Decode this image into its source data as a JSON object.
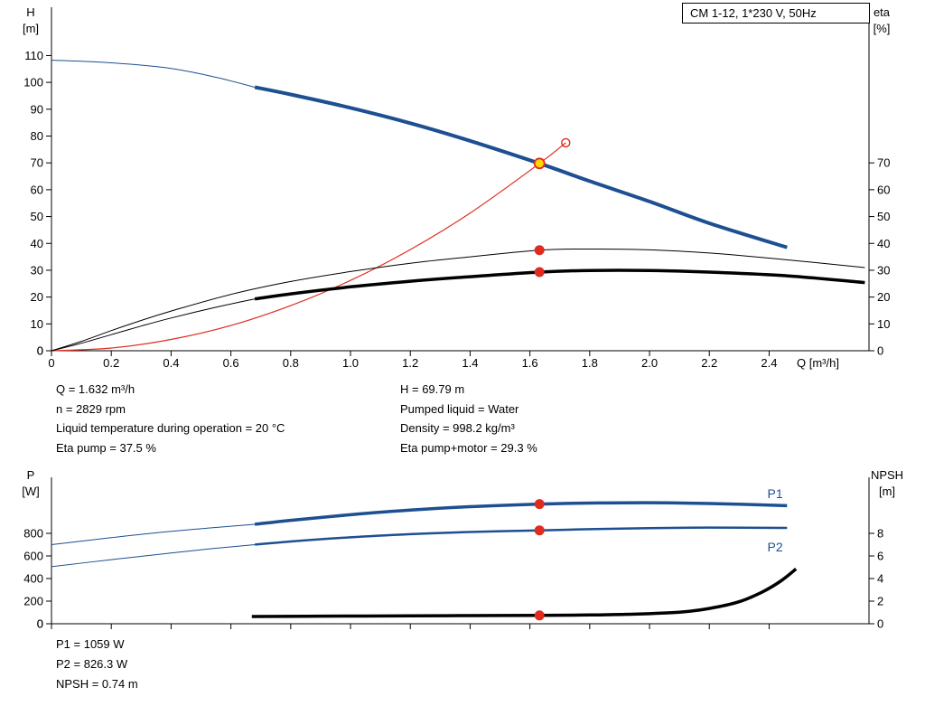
{
  "colors": {
    "blue": "#1d4f91",
    "red": "#e02b20",
    "black": "#000000",
    "yellow": "#ffd500"
  },
  "operating_point_info": {
    "left": [
      "Q = 1.632 m³/h",
      "n = 2829 rpm",
      "Liquid temperature during operation = 20 °C",
      "Eta pump = 37.5 %"
    ],
    "right": [
      "H = 69.79 m",
      "Pumped liquid = Water",
      "Density = 998.2 kg/m³",
      "Eta pump+motor = 29.3 %"
    ]
  },
  "power_info": [
    "P1 = 1059 W",
    "P2 = 826.3 W",
    "NPSH = 0.74 m"
  ],
  "chart_data": [
    {
      "type": "line",
      "title": "CM 1-12, 1*230 V, 50Hz",
      "x_axis": {
        "label": "Q [m³/h]",
        "range": [
          0,
          2.734
        ],
        "ticks": [
          0,
          0.2,
          0.4,
          0.6,
          0.8,
          1,
          1.2,
          1.4,
          1.6,
          1.8,
          2,
          2.2,
          2.4
        ],
        "tick_labels": [
          "0",
          "0.2",
          "0.4",
          "0.6",
          "0.8",
          "1.0",
          "1.2",
          "1.4",
          "1.6",
          "1.8",
          "2.0",
          "2.2",
          "2.4"
        ]
      },
      "left_axis": {
        "label_lines": [
          "H",
          "[m]"
        ],
        "range": [
          0,
          128
        ],
        "ticks": [
          0,
          10,
          20,
          30,
          40,
          50,
          60,
          70,
          80,
          90,
          100,
          110
        ],
        "tick_labels": [
          "0",
          "10",
          "20",
          "30",
          "40",
          "50",
          "60",
          "70",
          "80",
          "90",
          "100",
          "110"
        ]
      },
      "right_axis": {
        "label_lines": [
          "eta",
          "[%]"
        ],
        "range": [
          0,
          128
        ],
        "ticks": [
          0,
          10,
          20,
          30,
          40,
          50,
          60,
          70
        ],
        "tick_labels": [
          "0",
          "10",
          "20",
          "30",
          "40",
          "50",
          "60",
          "70"
        ]
      },
      "series": [
        {
          "name": "head-curve-lead",
          "axis": "left",
          "color": "blue",
          "width": 1,
          "points": [
            [
              0,
              108.3
            ],
            [
              0.2,
              107.3
            ],
            [
              0.4,
              105.2
            ],
            [
              0.55,
              101.9
            ],
            [
              0.68,
              98.2
            ]
          ]
        },
        {
          "name": "head-curve",
          "axis": "left",
          "color": "blue",
          "width": 4,
          "points": [
            [
              0.68,
              98.2
            ],
            [
              0.8,
              95.5
            ],
            [
              1.0,
              90.5
            ],
            [
              1.2,
              84.8
            ],
            [
              1.4,
              78.2
            ],
            [
              1.632,
              69.79
            ],
            [
              1.8,
              63.2
            ],
            [
              2.0,
              55.6
            ],
            [
              2.2,
              47.5
            ],
            [
              2.46,
              38.5
            ]
          ]
        },
        {
          "name": "system-curve",
          "axis": "left",
          "color": "red",
          "width": 1.2,
          "points": [
            [
              0,
              0
            ],
            [
              0.2,
              1.0
            ],
            [
              0.4,
              4.2
            ],
            [
              0.6,
              9.4
            ],
            [
              0.8,
              16.8
            ],
            [
              1.0,
              26.2
            ],
            [
              1.2,
              37.7
            ],
            [
              1.4,
              51.3
            ],
            [
              1.632,
              69.79
            ],
            [
              1.72,
              77.5
            ]
          ]
        },
        {
          "name": "eta-pump-curve",
          "axis": "right",
          "color": "black",
          "width": 1,
          "points": [
            [
              0,
              0
            ],
            [
              0.1,
              3.5
            ],
            [
              0.2,
              7.5
            ],
            [
              0.3,
              11.3
            ],
            [
              0.4,
              14.8
            ],
            [
              0.6,
              21.0
            ],
            [
              0.8,
              25.8
            ],
            [
              1.0,
              29.5
            ],
            [
              1.2,
              32.6
            ],
            [
              1.4,
              35.0
            ],
            [
              1.632,
              37.5
            ],
            [
              1.8,
              37.9
            ],
            [
              2.0,
              37.6
            ],
            [
              2.2,
              36.4
            ],
            [
              2.45,
              34.0
            ],
            [
              2.72,
              31.0
            ]
          ]
        },
        {
          "name": "eta-pump-motor-lead",
          "axis": "right",
          "color": "black",
          "width": 1,
          "points": [
            [
              0,
              0
            ],
            [
              0.1,
              2.8
            ],
            [
              0.2,
              6.0
            ],
            [
              0.3,
              9.2
            ],
            [
              0.4,
              12.2
            ],
            [
              0.55,
              16.2
            ],
            [
              0.68,
              19.3
            ]
          ]
        },
        {
          "name": "eta-pump-motor-curve",
          "axis": "right",
          "color": "black",
          "width": 3.5,
          "points": [
            [
              0.68,
              19.3
            ],
            [
              0.8,
              21.2
            ],
            [
              1.0,
              23.8
            ],
            [
              1.2,
              25.9
            ],
            [
              1.4,
              27.6
            ],
            [
              1.632,
              29.3
            ],
            [
              1.8,
              29.9
            ],
            [
              2.0,
              29.9
            ],
            [
              2.2,
              29.3
            ],
            [
              2.45,
              28.0
            ],
            [
              2.72,
              25.4
            ]
          ]
        }
      ],
      "markers": [
        {
          "name": "target-duty-marker",
          "style": "red-open",
          "axis": "left",
          "q": 1.72,
          "v": 77.5
        },
        {
          "name": "operating-point-marker",
          "style": "yellow-dot",
          "axis": "left",
          "q": 1.632,
          "v": 69.79
        },
        {
          "name": "eta-pump-marker",
          "style": "red-dot",
          "axis": "right",
          "q": 1.632,
          "v": 37.5
        },
        {
          "name": "eta-pump-motor-marker",
          "style": "red-dot",
          "axis": "right",
          "q": 1.632,
          "v": 29.3
        }
      ],
      "annotations": []
    },
    {
      "type": "line",
      "title": "",
      "x_axis": {
        "label": "",
        "range": [
          0,
          2.734
        ],
        "ticks": [
          0,
          0.2,
          0.4,
          0.6,
          0.8,
          1,
          1.2,
          1.4,
          1.6,
          1.8,
          2,
          2.2,
          2.4
        ],
        "tick_labels": []
      },
      "left_axis": {
        "label_lines": [
          "P",
          "[W]"
        ],
        "range": [
          0,
          1296
        ],
        "ticks": [
          0,
          200,
          400,
          600,
          800
        ],
        "tick_labels": [
          "0",
          "200",
          "400",
          "600",
          "800"
        ]
      },
      "right_axis": {
        "label_lines": [
          "NPSH",
          "[m]"
        ],
        "range": [
          0,
          12.96
        ],
        "ticks": [
          0,
          2,
          4,
          6,
          8
        ],
        "tick_labels": [
          "0",
          "2",
          "4",
          "6",
          "8"
        ]
      },
      "series": [
        {
          "name": "p1-curve-lead",
          "axis": "left",
          "color": "blue",
          "width": 1,
          "points": [
            [
              0,
              700
            ],
            [
              0.2,
              762
            ],
            [
              0.4,
              818
            ],
            [
              0.55,
              852
            ],
            [
              0.68,
              880
            ]
          ]
        },
        {
          "name": "p1-curve",
          "axis": "left",
          "color": "blue",
          "width": 3.5,
          "points": [
            [
              0.68,
              880
            ],
            [
              0.8,
              915
            ],
            [
              1.0,
              965
            ],
            [
              1.2,
              1006
            ],
            [
              1.4,
              1036
            ],
            [
              1.632,
              1059
            ],
            [
              1.8,
              1068
            ],
            [
              2.0,
              1071
            ],
            [
              2.2,
              1064
            ],
            [
              2.46,
              1045
            ]
          ]
        },
        {
          "name": "p2-curve-lead",
          "axis": "left",
          "color": "blue",
          "width": 1,
          "points": [
            [
              0,
              505
            ],
            [
              0.2,
              567
            ],
            [
              0.4,
              626
            ],
            [
              0.55,
              668
            ],
            [
              0.68,
              700
            ]
          ]
        },
        {
          "name": "p2-curve",
          "axis": "left",
          "color": "blue",
          "width": 2.5,
          "points": [
            [
              0.68,
              700
            ],
            [
              0.8,
              728
            ],
            [
              1.0,
              765
            ],
            [
              1.2,
              793
            ],
            [
              1.4,
              812
            ],
            [
              1.632,
              826.3
            ],
            [
              1.8,
              837
            ],
            [
              2.0,
              846
            ],
            [
              2.2,
              851
            ],
            [
              2.46,
              848
            ]
          ]
        },
        {
          "name": "npsh-curve",
          "axis": "right",
          "color": "black",
          "width": 3.5,
          "points": [
            [
              0.67,
              0.64
            ],
            [
              0.9,
              0.67
            ],
            [
              1.2,
              0.7
            ],
            [
              1.4,
              0.72
            ],
            [
              1.632,
              0.74
            ],
            [
              1.8,
              0.78
            ],
            [
              1.95,
              0.85
            ],
            [
              2.1,
              1.02
            ],
            [
              2.2,
              1.35
            ],
            [
              2.3,
              1.95
            ],
            [
              2.38,
              2.85
            ],
            [
              2.44,
              3.8
            ],
            [
              2.49,
              4.85
            ]
          ]
        }
      ],
      "markers": [
        {
          "name": "p1-marker",
          "style": "red-dot",
          "axis": "left",
          "q": 1.632,
          "v": 1059
        },
        {
          "name": "p2-marker",
          "style": "red-dot",
          "axis": "left",
          "q": 1.632,
          "v": 826.3
        },
        {
          "name": "npsh-marker",
          "style": "red-dot",
          "axis": "right",
          "q": 1.632,
          "v": 0.74
        }
      ],
      "annotations": [
        {
          "name": "p1-label",
          "text": "P1",
          "color": "blue",
          "axis": "left",
          "q": 2.42,
          "v": 1112
        },
        {
          "name": "p2-label",
          "text": "P2",
          "color": "blue",
          "axis": "left",
          "q": 2.42,
          "v": 640
        }
      ]
    }
  ]
}
